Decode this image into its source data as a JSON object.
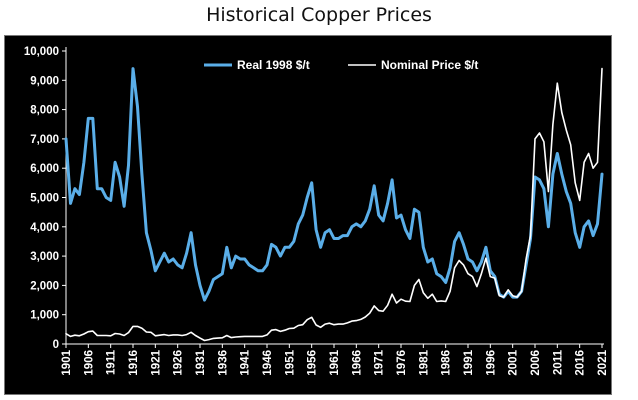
{
  "chart_data": {
    "type": "line",
    "title": "Historical Copper Prices",
    "xlabel": "",
    "ylabel": "",
    "xlim": [
      1901,
      2021
    ],
    "ylim": [
      0,
      10000
    ],
    "x_ticks": [
      "1901",
      "1906",
      "1911",
      "1916",
      "1921",
      "1926",
      "1931",
      "1936",
      "1941",
      "1946",
      "1951",
      "1956",
      "1961",
      "1966",
      "1971",
      "1976",
      "1981",
      "1986",
      "1991",
      "1996",
      "2001",
      "2006",
      "2011",
      "2016",
      "2021"
    ],
    "y_ticks": [
      "0",
      "1,000",
      "2,000",
      "3,000",
      "4,000",
      "5,000",
      "6,000",
      "7,000",
      "8,000",
      "9,000",
      "10,000"
    ],
    "grid": false,
    "legend": "top-right",
    "series": [
      {
        "name": "Real 1998 $/t",
        "color": "#5aaee8",
        "points": [
          [
            1901,
            7000
          ],
          [
            1902,
            4800
          ],
          [
            1903,
            5300
          ],
          [
            1904,
            5100
          ],
          [
            1905,
            6200
          ],
          [
            1906,
            7700
          ],
          [
            1907,
            7700
          ],
          [
            1908,
            5300
          ],
          [
            1909,
            5300
          ],
          [
            1910,
            5000
          ],
          [
            1911,
            4900
          ],
          [
            1912,
            6200
          ],
          [
            1913,
            5700
          ],
          [
            1914,
            4700
          ],
          [
            1915,
            6100
          ],
          [
            1916,
            9400
          ],
          [
            1917,
            8100
          ],
          [
            1918,
            5800
          ],
          [
            1919,
            3800
          ],
          [
            1920,
            3200
          ],
          [
            1921,
            2500
          ],
          [
            1922,
            2800
          ],
          [
            1923,
            3100
          ],
          [
            1924,
            2800
          ],
          [
            1925,
            2900
          ],
          [
            1926,
            2700
          ],
          [
            1927,
            2600
          ],
          [
            1928,
            3100
          ],
          [
            1929,
            3800
          ],
          [
            1930,
            2700
          ],
          [
            1931,
            2000
          ],
          [
            1932,
            1500
          ],
          [
            1933,
            1800
          ],
          [
            1934,
            2200
          ],
          [
            1935,
            2300
          ],
          [
            1936,
            2400
          ],
          [
            1937,
            3300
          ],
          [
            1938,
            2600
          ],
          [
            1939,
            3000
          ],
          [
            1940,
            2900
          ],
          [
            1941,
            2900
          ],
          [
            1942,
            2700
          ],
          [
            1943,
            2600
          ],
          [
            1944,
            2500
          ],
          [
            1945,
            2500
          ],
          [
            1946,
            2700
          ],
          [
            1947,
            3400
          ],
          [
            1948,
            3300
          ],
          [
            1949,
            3000
          ],
          [
            1950,
            3300
          ],
          [
            1951,
            3300
          ],
          [
            1952,
            3500
          ],
          [
            1953,
            4100
          ],
          [
            1954,
            4400
          ],
          [
            1955,
            5000
          ],
          [
            1956,
            5500
          ],
          [
            1957,
            3900
          ],
          [
            1958,
            3300
          ],
          [
            1959,
            3800
          ],
          [
            1960,
            3900
          ],
          [
            1961,
            3600
          ],
          [
            1962,
            3600
          ],
          [
            1963,
            3700
          ],
          [
            1964,
            3700
          ],
          [
            1965,
            4000
          ],
          [
            1966,
            4100
          ],
          [
            1967,
            4000
          ],
          [
            1968,
            4200
          ],
          [
            1969,
            4600
          ],
          [
            1970,
            5400
          ],
          [
            1971,
            4400
          ],
          [
            1972,
            4200
          ],
          [
            1973,
            4800
          ],
          [
            1974,
            5600
          ],
          [
            1975,
            4300
          ],
          [
            1976,
            4400
          ],
          [
            1977,
            3900
          ],
          [
            1978,
            3600
          ],
          [
            1979,
            4600
          ],
          [
            1980,
            4500
          ],
          [
            1981,
            3300
          ],
          [
            1982,
            2800
          ],
          [
            1983,
            2900
          ],
          [
            1984,
            2400
          ],
          [
            1985,
            2300
          ],
          [
            1986,
            2100
          ],
          [
            1987,
            2600
          ],
          [
            1988,
            3500
          ],
          [
            1989,
            3800
          ],
          [
            1990,
            3400
          ],
          [
            1991,
            2900
          ],
          [
            1992,
            2800
          ],
          [
            1993,
            2500
          ],
          [
            1994,
            2800
          ],
          [
            1995,
            3300
          ],
          [
            1996,
            2500
          ],
          [
            1997,
            2300
          ],
          [
            1998,
            1700
          ],
          [
            1999,
            1600
          ],
          [
            2000,
            1800
          ],
          [
            2001,
            1600
          ],
          [
            2002,
            1600
          ],
          [
            2003,
            1800
          ],
          [
            2004,
            2700
          ],
          [
            2005,
            3600
          ],
          [
            2006,
            5700
          ],
          [
            2007,
            5600
          ],
          [
            2008,
            5300
          ],
          [
            2009,
            4000
          ],
          [
            2010,
            5800
          ],
          [
            2011,
            6500
          ],
          [
            2012,
            5800
          ],
          [
            2013,
            5200
          ],
          [
            2014,
            4800
          ],
          [
            2015,
            3800
          ],
          [
            2016,
            3300
          ],
          [
            2017,
            4000
          ],
          [
            2018,
            4200
          ],
          [
            2019,
            3700
          ],
          [
            2020,
            4100
          ],
          [
            2021,
            5800
          ]
        ]
      },
      {
        "name": "Nominal Price $/t",
        "color": "#ffffff",
        "points": [
          [
            1901,
            350
          ],
          [
            1902,
            260
          ],
          [
            1903,
            300
          ],
          [
            1904,
            280
          ],
          [
            1905,
            340
          ],
          [
            1906,
            420
          ],
          [
            1907,
            440
          ],
          [
            1908,
            290
          ],
          [
            1909,
            290
          ],
          [
            1910,
            290
          ],
          [
            1911,
            280
          ],
          [
            1912,
            360
          ],
          [
            1913,
            340
          ],
          [
            1914,
            290
          ],
          [
            1915,
            390
          ],
          [
            1916,
            600
          ],
          [
            1917,
            600
          ],
          [
            1918,
            540
          ],
          [
            1919,
            410
          ],
          [
            1920,
            400
          ],
          [
            1921,
            280
          ],
          [
            1922,
            300
          ],
          [
            1923,
            320
          ],
          [
            1924,
            290
          ],
          [
            1925,
            310
          ],
          [
            1926,
            310
          ],
          [
            1927,
            290
          ],
          [
            1928,
            320
          ],
          [
            1929,
            400
          ],
          [
            1930,
            290
          ],
          [
            1931,
            200
          ],
          [
            1932,
            120
          ],
          [
            1933,
            150
          ],
          [
            1934,
            190
          ],
          [
            1935,
            200
          ],
          [
            1936,
            210
          ],
          [
            1937,
            290
          ],
          [
            1938,
            220
          ],
          [
            1939,
            240
          ],
          [
            1940,
            250
          ],
          [
            1941,
            260
          ],
          [
            1942,
            260
          ],
          [
            1943,
            260
          ],
          [
            1944,
            260
          ],
          [
            1945,
            260
          ],
          [
            1946,
            310
          ],
          [
            1947,
            470
          ],
          [
            1948,
            490
          ],
          [
            1949,
            430
          ],
          [
            1950,
            470
          ],
          [
            1951,
            530
          ],
          [
            1952,
            540
          ],
          [
            1953,
            630
          ],
          [
            1954,
            660
          ],
          [
            1955,
            830
          ],
          [
            1956,
            910
          ],
          [
            1957,
            650
          ],
          [
            1958,
            570
          ],
          [
            1959,
            680
          ],
          [
            1960,
            710
          ],
          [
            1961,
            660
          ],
          [
            1962,
            680
          ],
          [
            1963,
            680
          ],
          [
            1964,
            720
          ],
          [
            1965,
            780
          ],
          [
            1966,
            800
          ],
          [
            1967,
            840
          ],
          [
            1968,
            920
          ],
          [
            1969,
            1050
          ],
          [
            1970,
            1300
          ],
          [
            1971,
            1140
          ],
          [
            1972,
            1120
          ],
          [
            1973,
            1320
          ],
          [
            1974,
            1700
          ],
          [
            1975,
            1400
          ],
          [
            1976,
            1530
          ],
          [
            1977,
            1460
          ],
          [
            1978,
            1450
          ],
          [
            1979,
            2000
          ],
          [
            1980,
            2200
          ],
          [
            1981,
            1750
          ],
          [
            1982,
            1560
          ],
          [
            1983,
            1700
          ],
          [
            1984,
            1450
          ],
          [
            1985,
            1470
          ],
          [
            1986,
            1450
          ],
          [
            1987,
            1800
          ],
          [
            1988,
            2600
          ],
          [
            1989,
            2850
          ],
          [
            1990,
            2700
          ],
          [
            1991,
            2400
          ],
          [
            1992,
            2300
          ],
          [
            1993,
            1960
          ],
          [
            1994,
            2400
          ],
          [
            1995,
            2930
          ],
          [
            1996,
            2300
          ],
          [
            1997,
            2250
          ],
          [
            1998,
            1650
          ],
          [
            1999,
            1600
          ],
          [
            2000,
            1850
          ],
          [
            2001,
            1650
          ],
          [
            2002,
            1600
          ],
          [
            2003,
            1800
          ],
          [
            2004,
            2900
          ],
          [
            2005,
            3700
          ],
          [
            2006,
            7000
          ],
          [
            2007,
            7200
          ],
          [
            2008,
            6900
          ],
          [
            2009,
            5200
          ],
          [
            2010,
            7500
          ],
          [
            2011,
            8900
          ],
          [
            2012,
            7900
          ],
          [
            2013,
            7300
          ],
          [
            2014,
            6800
          ],
          [
            2015,
            5500
          ],
          [
            2016,
            4900
          ],
          [
            2017,
            6200
          ],
          [
            2018,
            6500
          ],
          [
            2019,
            6000
          ],
          [
            2020,
            6200
          ],
          [
            2021,
            9400
          ]
        ]
      }
    ]
  }
}
